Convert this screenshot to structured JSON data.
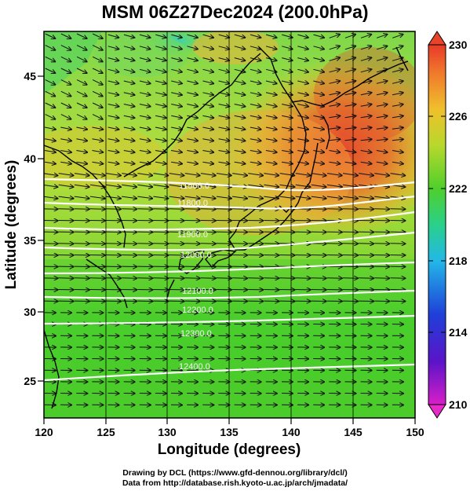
{
  "title": "MSM 06Z27Dec2024 (200.0hPa)",
  "xlabel": "Longitude (degrees)",
  "ylabel": "Latitude  (degrees)",
  "x_ticks": [
    "120",
    "125",
    "130",
    "135",
    "140",
    "145",
    "150"
  ],
  "y_ticks": [
    "25",
    "30",
    "35",
    "40",
    "45"
  ],
  "colorbar": {
    "ticks": [
      "210",
      "214",
      "218",
      "222",
      "226",
      "230"
    ],
    "min": 210,
    "max": 230
  },
  "contour_labels": [
    "11500.0",
    "11800.0",
    "11900.0",
    "12000.0",
    "12100.0",
    "12200.0",
    "12300.0",
    "12400.0"
  ],
  "credits": {
    "line1": "Drawing by DCL (https://www.gfd-dennou.org/library/dcl/)",
    "line2": "Data from http://database.rish.kyoto-u.ac.jp/arch/jmadata/"
  },
  "colors": {
    "warm": "#e8442a",
    "mid": "#6fd42a",
    "cool": "#2ab8e8",
    "contour": "#ffffff",
    "vector": "#111111"
  }
}
